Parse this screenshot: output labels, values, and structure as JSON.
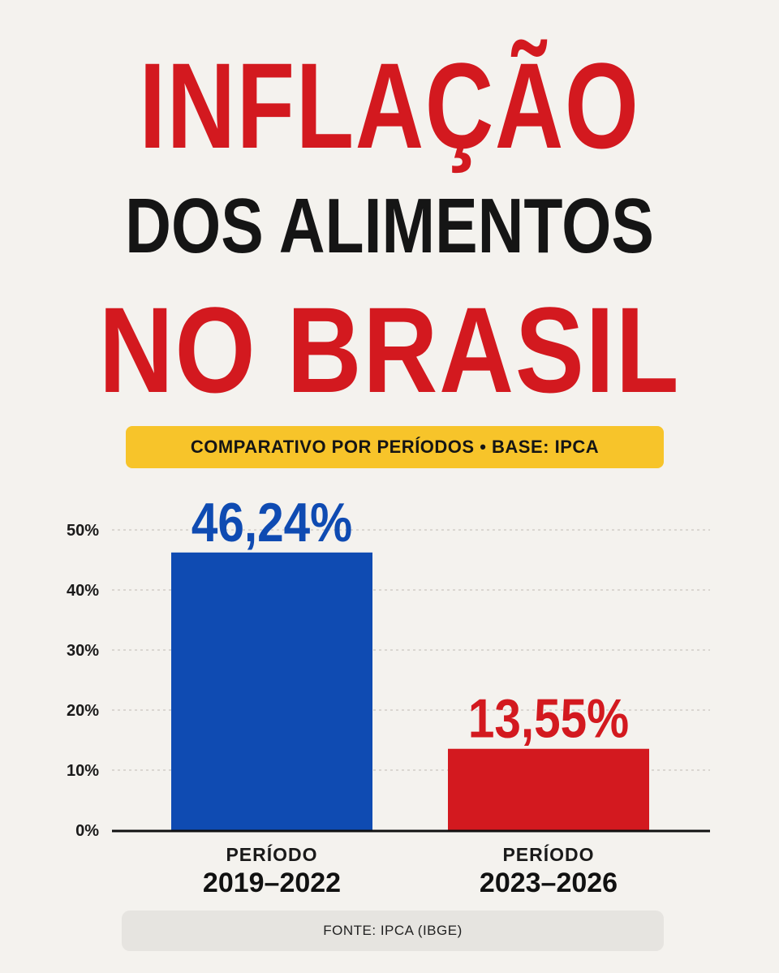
{
  "header": {
    "line1": "INFLAÇÃO",
    "line2": "DOS ALIMENTOS",
    "line3": "NO BRASIL",
    "subtitle": "COMPARATIVO POR PERÍODOS • BASE: IPCA"
  },
  "colors": {
    "red": "#d3191f",
    "blue": "#0f4bb2",
    "yellow": "#f7c42a",
    "dark": "#151515"
  },
  "chart_data": {
    "type": "bar",
    "categories": [
      "2019–2022",
      "2023–2026"
    ],
    "category_prefix": "PERÍODO",
    "values": [
      46.24,
      13.55
    ],
    "value_labels": [
      "46,24%",
      "13,55%"
    ],
    "bar_colors": [
      "#0f4bb2",
      "#d3191f"
    ],
    "yticks": [
      0,
      10,
      20,
      30,
      40,
      50
    ],
    "ytick_labels": [
      "0%",
      "10%",
      "20%",
      "30%",
      "40%",
      "50%"
    ],
    "ylim": [
      0,
      50
    ],
    "grid": true,
    "legend": "none"
  },
  "footer": {
    "source": "FONTE: IPCA (IBGE)"
  }
}
